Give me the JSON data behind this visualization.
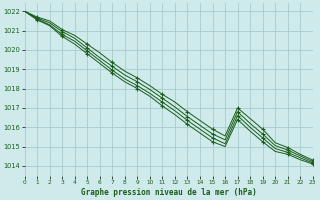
{
  "background_color": "#ceeaea",
  "plot_bg_color": "#ceeaea",
  "grid_color": "#aacccc",
  "line_color": "#1a5c1a",
  "xlabel": "Graphe pression niveau de la mer (hPa)",
  "xlim": [
    0,
    23
  ],
  "ylim": [
    1013.5,
    1022.4
  ],
  "yticks": [
    1014,
    1015,
    1016,
    1017,
    1018,
    1019,
    1020,
    1021,
    1022
  ],
  "xticks": [
    0,
    1,
    2,
    3,
    4,
    5,
    6,
    7,
    8,
    9,
    10,
    11,
    12,
    13,
    14,
    15,
    16,
    17,
    18,
    19,
    20,
    21,
    22,
    23
  ],
  "series": [
    [
      1022.0,
      1021.7,
      1021.5,
      1021.05,
      1020.75,
      1020.3,
      1019.85,
      1019.35,
      1018.9,
      1018.55,
      1018.15,
      1017.7,
      1017.3,
      1016.8,
      1016.35,
      1015.9,
      1015.55,
      1017.0,
      1016.45,
      1015.9,
      1015.2,
      1014.95,
      1014.6,
      1014.3
    ],
    [
      1022.0,
      1021.65,
      1021.4,
      1020.95,
      1020.6,
      1020.1,
      1019.6,
      1019.15,
      1018.7,
      1018.35,
      1017.95,
      1017.5,
      1017.05,
      1016.55,
      1016.1,
      1015.65,
      1015.35,
      1016.8,
      1016.2,
      1015.65,
      1015.05,
      1014.82,
      1014.52,
      1014.22
    ],
    [
      1022.0,
      1021.6,
      1021.3,
      1020.8,
      1020.45,
      1019.95,
      1019.45,
      1018.95,
      1018.5,
      1018.15,
      1017.75,
      1017.3,
      1016.85,
      1016.35,
      1015.9,
      1015.45,
      1015.15,
      1016.6,
      1016.0,
      1015.45,
      1014.9,
      1014.7,
      1014.42,
      1014.15
    ],
    [
      1022.0,
      1021.55,
      1021.25,
      1020.7,
      1020.3,
      1019.8,
      1019.3,
      1018.8,
      1018.35,
      1018.0,
      1017.6,
      1017.1,
      1016.65,
      1016.15,
      1015.7,
      1015.25,
      1015.0,
      1016.4,
      1015.8,
      1015.25,
      1014.75,
      1014.6,
      1014.32,
      1014.1
    ]
  ],
  "marker_indices": [
    1,
    3,
    5,
    7,
    9,
    11,
    13,
    15,
    17,
    19,
    21,
    23
  ]
}
